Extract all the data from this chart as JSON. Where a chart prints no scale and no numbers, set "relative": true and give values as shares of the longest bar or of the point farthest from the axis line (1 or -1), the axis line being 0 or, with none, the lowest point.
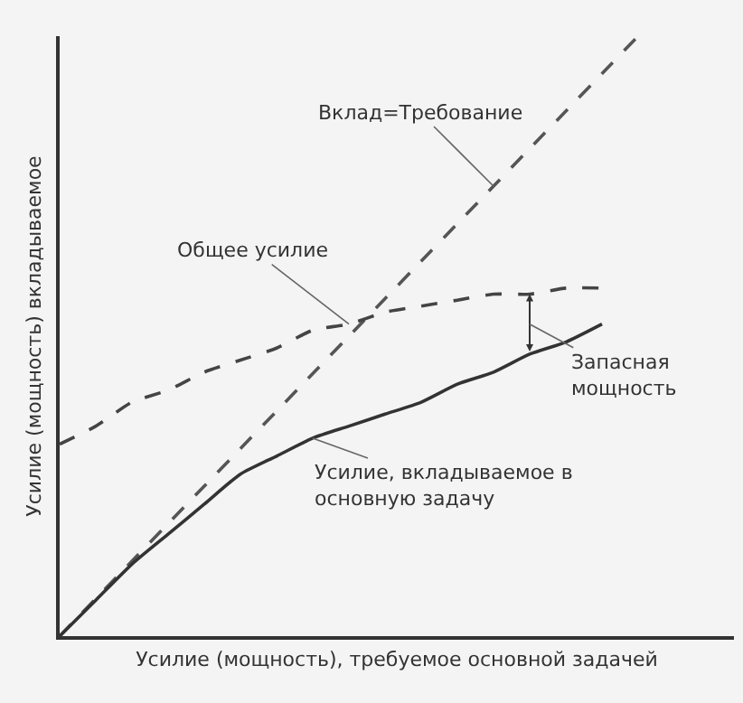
{
  "chart_data": {
    "type": "line",
    "relative": true,
    "xlabel": "Усилие (мощность), требуемое основной задачей",
    "ylabel": "Усилие (мощность) вкладываемое",
    "categories": [
      null,
      null,
      null,
      null,
      null,
      null,
      null,
      null,
      null,
      null,
      null,
      null,
      null,
      null,
      null,
      null,
      null
    ],
    "series": [
      {
        "name": "Вклад=Требование",
        "color": "#555555",
        "line_style": "dashed",
        "values": [
          0,
          0.0625,
          0.125,
          0.1875,
          0.25,
          0.3125,
          0.375,
          0.4375,
          0.5,
          0.5625,
          0.625,
          0.6875,
          0.75,
          0.8125,
          0.875,
          0.9375,
          1
        ]
      },
      {
        "name": "Общее усилие",
        "color": "#444444",
        "line_style": "dashed",
        "values": [
          0.32,
          0.35,
          0.39,
          0.41,
          0.44,
          0.46,
          0.48,
          0.51,
          0.52,
          0.54,
          0.55,
          0.56,
          0.57,
          0.57,
          0.58,
          0.58,
          null
        ]
      },
      {
        "name": "Усилие, вкладываемое в основную задачу",
        "color": "#333333",
        "line_style": "solid",
        "values": [
          0,
          0.06,
          0.12,
          0.17,
          0.22,
          0.27,
          0.3,
          0.33,
          0.35,
          0.37,
          0.39,
          0.42,
          0.44,
          0.47,
          0.49,
          0.52,
          null
        ]
      }
    ],
    "annotations": [
      "Запасная мощность"
    ],
    "legend": false,
    "grid": false,
    "tick_labels": false
  }
}
